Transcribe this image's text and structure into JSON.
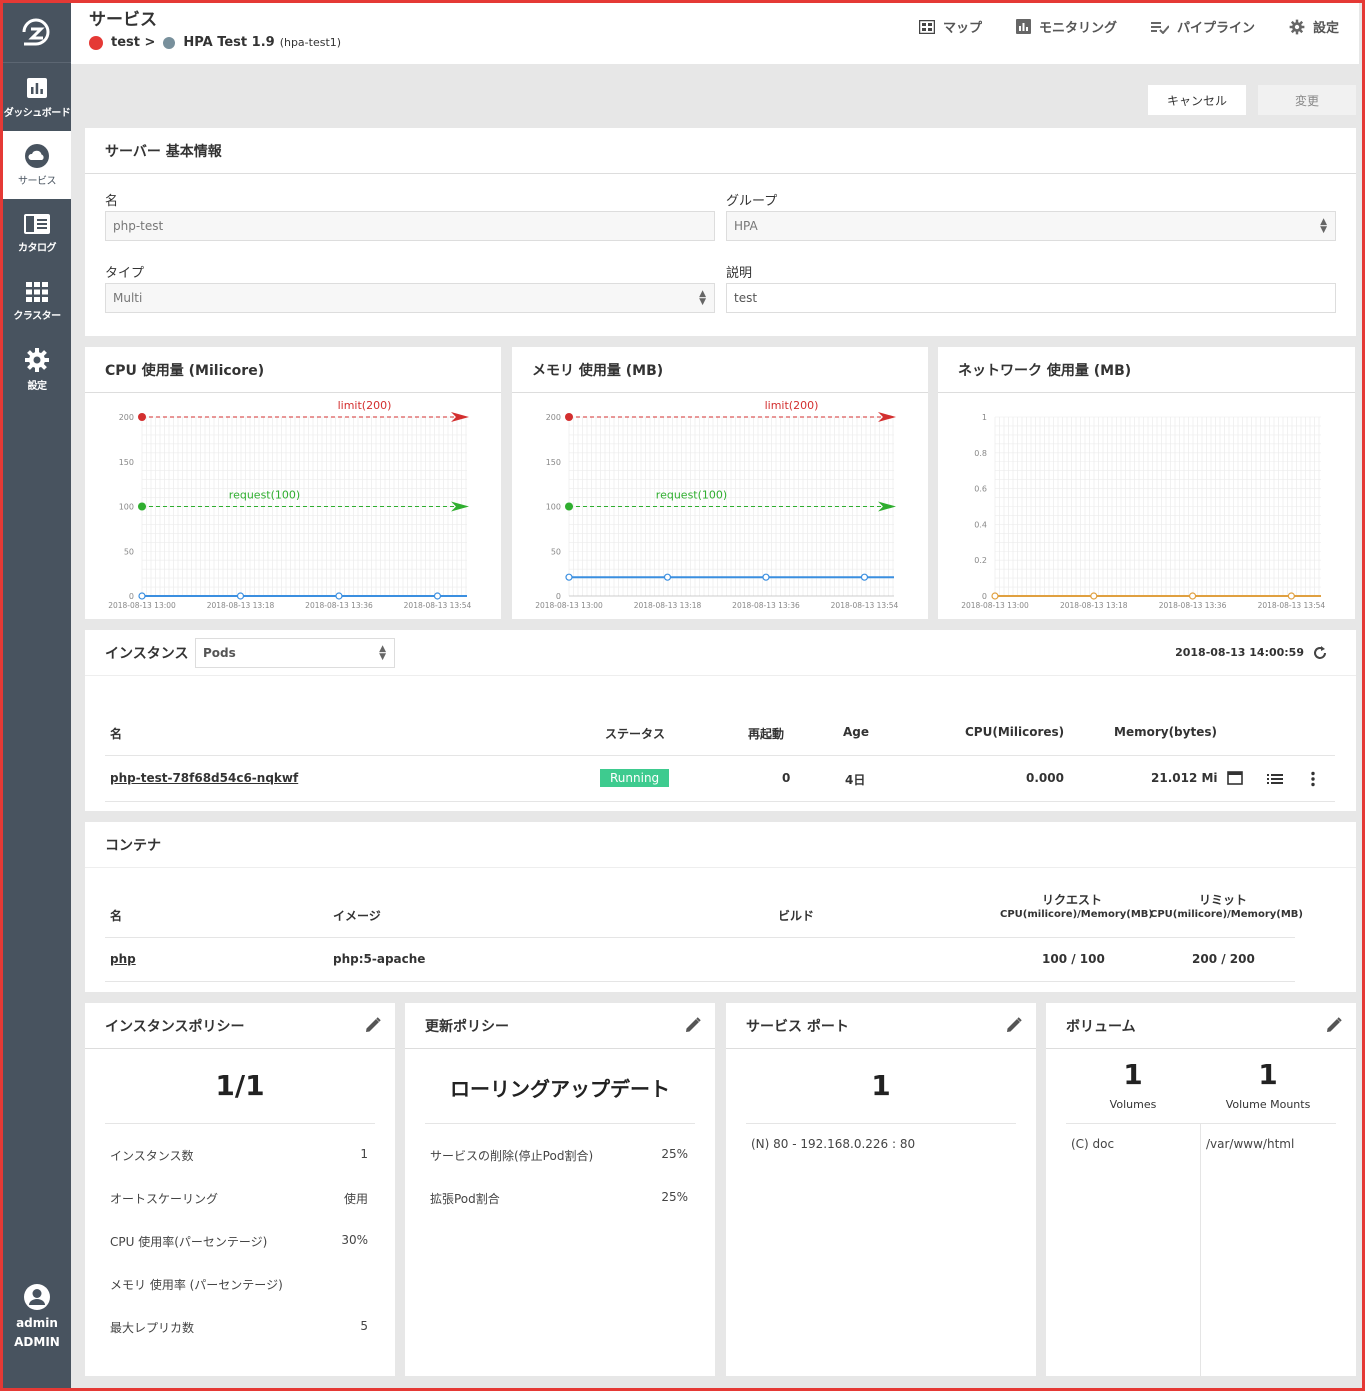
{
  "header": {
    "title": "サービス",
    "crumb_project": "test >",
    "crumb_service": "HPA Test 1.9",
    "crumb_service_id": "(hpa-test1)",
    "nav": [
      {
        "label": "マップ",
        "icon": "map-icon"
      },
      {
        "label": "モニタリング",
        "icon": "monitoring-icon"
      },
      {
        "label": "パイプライン",
        "icon": "pipeline-icon"
      },
      {
        "label": "設定",
        "icon": "gear-icon"
      }
    ]
  },
  "sidebar": {
    "items": [
      {
        "label": "ダッシュボード",
        "icon": "dashboard-icon"
      },
      {
        "label": "サービス",
        "icon": "cloud-icon"
      },
      {
        "label": "カタログ",
        "icon": "catalog-icon"
      },
      {
        "label": "クラスター",
        "icon": "cluster-icon"
      },
      {
        "label": "設定",
        "icon": "gear-icon"
      }
    ],
    "user_name": "admin",
    "user_role": "ADMIN"
  },
  "actions": {
    "cancel": "キャンセル",
    "change": "変更"
  },
  "basic": {
    "title": "サーバー 基本情報",
    "name_label": "名",
    "name_value": "php-test",
    "group_label": "グループ",
    "group_value": "HPA",
    "type_label": "タイプ",
    "type_value": "Multi",
    "desc_label": "説明",
    "desc_value": "test"
  },
  "chart_data": [
    {
      "type": "line",
      "title": "CPU 使用量 (Milicore)",
      "x": [
        "2018-08-13 13:00",
        "2018-08-13 13:18",
        "2018-08-13 13:36",
        "2018-08-13 13:54"
      ],
      "ylim": [
        0,
        200
      ],
      "yticks": [
        "0",
        "50",
        "100",
        "150",
        "200"
      ],
      "series": [
        {
          "values": [
            0,
            0,
            0,
            0
          ],
          "color": "#3b8fe0"
        }
      ],
      "annotations": [
        {
          "label": "limit(200)",
          "value": 200,
          "color": "#d32f2f"
        },
        {
          "label": "request(100)",
          "value": 100,
          "color": "#2fae2f"
        }
      ],
      "grid": true
    },
    {
      "type": "line",
      "title": "メモリ 使用量 (MB)",
      "x": [
        "2018-08-13 13:00",
        "2018-08-13 13:18",
        "2018-08-13 13:36",
        "2018-08-13 13:54"
      ],
      "ylim": [
        0,
        200
      ],
      "yticks": [
        "0",
        "50",
        "100",
        "150",
        "200"
      ],
      "series": [
        {
          "values": [
            21,
            21,
            21,
            21
          ],
          "color": "#3b8fe0"
        }
      ],
      "annotations": [
        {
          "label": "limit(200)",
          "value": 200,
          "color": "#d32f2f"
        },
        {
          "label": "request(100)",
          "value": 100,
          "color": "#2fae2f"
        }
      ],
      "grid": true
    },
    {
      "type": "line",
      "title": "ネットワーク 使用量 (MB)",
      "x": [
        "2018-08-13 13:00",
        "2018-08-13 13:18",
        "2018-08-13 13:36",
        "2018-08-13 13:54"
      ],
      "ylim": [
        0,
        1
      ],
      "yticks": [
        "0",
        "0.2",
        "0.4",
        "0.6",
        "0.8",
        "1"
      ],
      "series": [
        {
          "values": [
            0,
            0,
            0,
            0
          ],
          "color": "#e0a040"
        }
      ],
      "annotations": [],
      "grid": true
    }
  ],
  "instances": {
    "title": "インスタンス",
    "select_value": "Pods",
    "timestamp": "2018-08-13 14:00:59",
    "headers": [
      "名",
      "ステータス",
      "再起動",
      "Age",
      "CPU(Milicores)",
      "Memory(bytes)"
    ],
    "rows": [
      {
        "name": "php-test-78f68d54c6-nqkwf",
        "status": "Running",
        "restarts": "0",
        "age": "4日",
        "cpu": "0.000",
        "memory": "21.012 Mi"
      }
    ]
  },
  "containers": {
    "title": "コンテナ",
    "headers": {
      "name": "名",
      "image": "イメージ",
      "build": "ビルド",
      "request": "リクエスト",
      "request_sub": "CPU(milicore)/Memory(MB)",
      "limit": "リミット",
      "limit_sub": "CPU(milicore)/Memory(MB)"
    },
    "rows": [
      {
        "name": "php",
        "image": "php:5-apache",
        "build": "",
        "request": "100 / 100",
        "limit": "200 / 200"
      }
    ]
  },
  "instance_policy": {
    "title": "インスタンスポリシー",
    "big": "1/1",
    "rows": [
      {
        "label": "インスタンス数",
        "value": "1"
      },
      {
        "label": "オートスケーリング",
        "value": "使用"
      },
      {
        "label": "CPU 使用率(パーセンテージ)",
        "value": "30%"
      },
      {
        "label": "メモリ 使用率 (パーセンテージ)",
        "value": ""
      },
      {
        "label": "最大レプリカ数",
        "value": "5"
      }
    ]
  },
  "update_policy": {
    "title": "更新ポリシー",
    "big": "ローリングアップデート",
    "rows": [
      {
        "label": "サービスの削除(停止Pod割合)",
        "value": "25%"
      },
      {
        "label": "拡張Pod割合",
        "value": "25%"
      }
    ]
  },
  "service_port": {
    "title": "サービス ポート",
    "big": "1",
    "rows": [
      "(N) 80 - 192.168.0.226 : 80"
    ]
  },
  "volume": {
    "title": "ボリューム",
    "volumes_count": "1",
    "volumes_label": "Volumes",
    "mounts_count": "1",
    "mounts_label": "Volume Mounts",
    "volume_name": "(C) doc",
    "mount_path": "/var/www/html"
  }
}
